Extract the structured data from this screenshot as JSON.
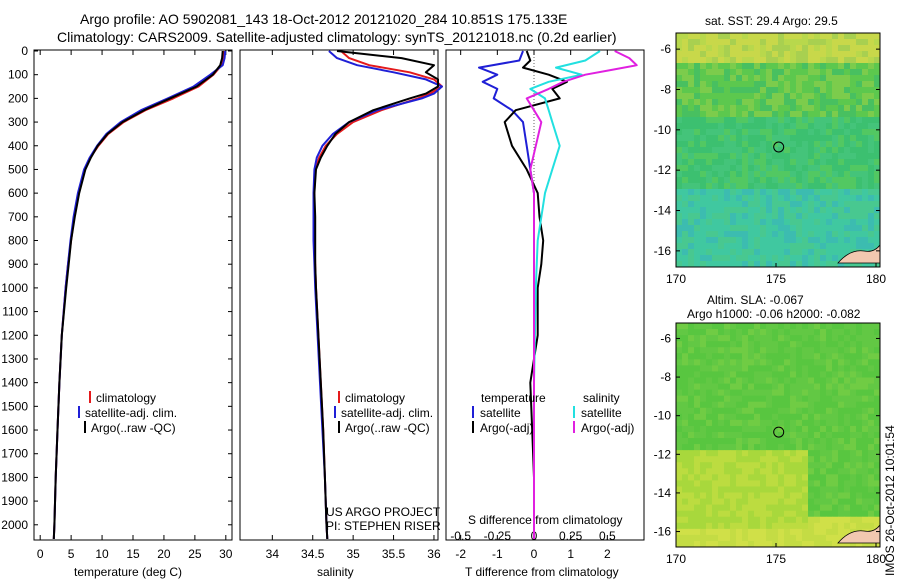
{
  "header": {
    "line1": "Argo profile: AO 5902081_143 18-Oct-2012 20121020_284 10.851S 175.133E",
    "line2": "Climatology: CARS2009. Satellite-adjusted climatology: synTS_20121018.nc (0.2d earlier)"
  },
  "colors": {
    "climatology": "#e41a1c",
    "satellite": "#1f1fd6",
    "argo": "#000000",
    "sal_satellite": "#22e0e0",
    "sal_argo": "#e020e0"
  },
  "depth_axis": {
    "ticks": [
      0,
      100,
      200,
      300,
      400,
      500,
      600,
      700,
      800,
      900,
      1000,
      1100,
      1200,
      1300,
      1400,
      1500,
      1600,
      1700,
      1800,
      1900,
      2000
    ],
    "range": [
      0,
      2060
    ]
  },
  "legend_profiles": {
    "climatology": "climatology",
    "satellite": "satellite-adj. clim.",
    "argo": "Argo(..raw -QC)"
  },
  "legend_diff": {
    "temperature": "temperature",
    "salinity": "salinity",
    "satellite": "satellite",
    "argo": "Argo(-adj)"
  },
  "project": {
    "line1": "US ARGO PROJECT",
    "line2": "PI: STEPHEN RISER"
  },
  "maps": {
    "sst_title": "sat. SST: 29.4 Argo: 29.5",
    "sla_title1": "Altim. SLA: -0.067",
    "sla_title2": "Argo h1000: -0.06 h2000: -0.082",
    "lat_ticks": [
      -6,
      -8,
      -10,
      -12,
      -14,
      -16
    ],
    "lon_ticks": [
      170,
      175,
      180
    ],
    "lat_range": [
      -16.8,
      -5.2
    ],
    "lon_range": [
      170,
      180.2
    ],
    "profile_position": {
      "lon": 175.133,
      "lat": -10.851
    }
  },
  "footer_stamp": "IMOS 26-Oct-2012 10:01:54",
  "chart_data": [
    {
      "type": "line",
      "xlabel": "temperature (deg C)",
      "ylabel": "",
      "xlim": [
        -1,
        31
      ],
      "ylim": [
        2060,
        0
      ],
      "x_ticks": [
        0,
        5,
        10,
        15,
        20,
        25,
        30
      ],
      "series": [
        {
          "name": "climatology",
          "depth": [
            0,
            30,
            60,
            100,
            150,
            200,
            250,
            300,
            350,
            400,
            450,
            500,
            600,
            700,
            800,
            900,
            1000,
            1200,
            1400,
            1600,
            1800,
            2000,
            2060
          ],
          "values": [
            29.7,
            29.6,
            29.3,
            28.0,
            25.6,
            21.5,
            17.0,
            13.5,
            11.0,
            9.4,
            8.1,
            7.2,
            6.2,
            5.5,
            5.0,
            4.5,
            4.1,
            3.5,
            3.1,
            2.8,
            2.5,
            2.3,
            2.2
          ]
        },
        {
          "name": "satellite-adj. clim.",
          "depth": [
            0,
            30,
            60,
            100,
            150,
            200,
            250,
            300,
            350,
            400,
            450,
            500,
            600,
            700,
            800,
            900,
            1000,
            1200,
            1400,
            1600,
            1800,
            2000,
            2060
          ],
          "values": [
            29.9,
            29.8,
            29.5,
            27.5,
            24.8,
            20.6,
            16.3,
            13.0,
            10.7,
            9.2,
            8.0,
            7.1,
            6.1,
            5.4,
            4.9,
            4.5,
            4.1,
            3.5,
            3.1,
            2.8,
            2.5,
            2.3,
            2.2
          ]
        },
        {
          "name": "Argo(..raw -QC)",
          "depth": [
            0,
            30,
            60,
            100,
            150,
            200,
            250,
            300,
            350,
            400,
            450,
            500,
            600,
            700,
            800,
            900,
            1000,
            1200,
            1400,
            1600,
            1800,
            2000,
            2060
          ],
          "values": [
            29.5,
            29.4,
            29.1,
            27.9,
            25.3,
            21.0,
            16.8,
            13.3,
            10.9,
            9.3,
            8.2,
            7.3,
            6.3,
            5.6,
            5.0,
            4.6,
            4.2,
            3.5,
            3.1,
            2.8,
            2.5,
            2.3,
            2.2
          ]
        }
      ]
    },
    {
      "type": "line",
      "xlabel": "salinity",
      "ylabel": "",
      "xlim": [
        33.6,
        36.05
      ],
      "ylim": [
        2060,
        0
      ],
      "x_ticks": [
        34,
        34.5,
        35,
        35.5,
        36
      ],
      "series": [
        {
          "name": "climatology",
          "depth": [
            0,
            30,
            60,
            90,
            120,
            150,
            180,
            200,
            250,
            300,
            350,
            400,
            450,
            500,
            600,
            700,
            800,
            900,
            1000,
            1200,
            1400,
            1600,
            1800,
            2000,
            2060
          ],
          "values": [
            34.85,
            34.95,
            35.2,
            35.7,
            36.0,
            36.1,
            35.95,
            35.8,
            35.35,
            35.0,
            34.8,
            34.66,
            34.58,
            34.53,
            34.52,
            34.52,
            34.52,
            34.53,
            34.54,
            34.57,
            34.6,
            34.63,
            34.65,
            34.67,
            34.68
          ]
        },
        {
          "name": "satellite-adj. clim.",
          "depth": [
            0,
            30,
            60,
            90,
            120,
            150,
            180,
            200,
            250,
            300,
            350,
            400,
            450,
            500,
            600,
            700,
            800,
            900,
            1000,
            1200,
            1400,
            1600,
            1800,
            2000,
            2060
          ],
          "values": [
            34.7,
            34.8,
            35.05,
            35.5,
            35.9,
            36.1,
            36.0,
            35.85,
            35.3,
            34.95,
            34.75,
            34.62,
            34.55,
            34.52,
            34.51,
            34.51,
            34.51,
            34.52,
            34.53,
            34.56,
            34.59,
            34.62,
            34.65,
            34.67,
            34.68
          ]
        },
        {
          "name": "Argo(..raw -QC)",
          "depth": [
            0,
            30,
            60,
            90,
            120,
            150,
            180,
            200,
            250,
            300,
            350,
            400,
            450,
            500,
            600,
            700,
            800,
            900,
            1000,
            1200,
            1400,
            1600,
            1800,
            2000,
            2060
          ],
          "values": [
            34.8,
            35.6,
            36.0,
            35.9,
            36.05,
            36.05,
            35.9,
            35.7,
            35.25,
            34.95,
            34.78,
            34.68,
            34.6,
            34.54,
            34.52,
            34.53,
            34.53,
            34.53,
            34.54,
            34.57,
            34.6,
            34.63,
            34.65,
            34.67,
            34.68
          ]
        }
      ]
    },
    {
      "type": "line",
      "xlabel": "T difference from climatology",
      "secondary_xlabel": "S difference from climatology",
      "ylabel": "",
      "xlim": [
        -2.4,
        3.0
      ],
      "ylim": [
        2060,
        0
      ],
      "x_ticks": [
        -2,
        -1,
        0,
        1,
        2
      ],
      "secondary_x_ticks": [
        -0.5,
        -0.25,
        0,
        0.25,
        0.5
      ],
      "series": [
        {
          "name": "temperature satellite",
          "depth": [
            0,
            40,
            70,
            100,
            130,
            160,
            200,
            250,
            300,
            400,
            500,
            600,
            700,
            800,
            1000,
            1200,
            1400,
            1600,
            1800,
            2000,
            2060
          ],
          "values": [
            -0.3,
            -0.4,
            -1.5,
            -1.0,
            -1.4,
            -1.0,
            -1.1,
            -0.6,
            -0.3,
            -0.2,
            -0.1,
            0.0,
            0.0,
            0.0,
            0.0,
            0.0,
            0.0,
            0.0,
            0.0,
            0.0,
            0.0
          ]
        },
        {
          "name": "temperature Argo(-adj)",
          "depth": [
            0,
            40,
            70,
            100,
            130,
            160,
            200,
            250,
            300,
            400,
            500,
            600,
            700,
            800,
            900,
            1000,
            1200,
            1400,
            1600,
            1800,
            2000,
            2060
          ],
          "values": [
            -0.2,
            -0.1,
            -0.3,
            0.4,
            0.9,
            0.5,
            0.7,
            -0.5,
            -0.8,
            -0.6,
            -0.2,
            0.1,
            0.15,
            0.25,
            0.2,
            0.1,
            0.1,
            -0.1,
            -0.05,
            0.0,
            0.0,
            0.0
          ]
        },
        {
          "name": "salinity satellite",
          "depth": [
            0,
            40,
            70,
            100,
            130,
            160,
            200,
            250,
            300,
            350,
            400,
            500,
            600,
            800,
            1000,
            1400,
            1800,
            2060
          ],
          "values": [
            1.8,
            1.4,
            0.6,
            1.3,
            0.4,
            -0.1,
            0.3,
            0.4,
            0.5,
            0.6,
            0.7,
            0.5,
            0.3,
            0.1,
            0.05,
            0.0,
            0.0,
            0.0
          ]
        },
        {
          "name": "salinity Argo(-adj)",
          "depth": [
            0,
            30,
            60,
            80,
            100,
            130,
            160,
            200,
            250,
            300,
            400,
            500,
            600,
            800,
            1000,
            1400,
            1800,
            2060
          ],
          "values": [
            2.2,
            2.6,
            2.8,
            2.1,
            1.4,
            0.8,
            0.4,
            -0.2,
            0.0,
            0.2,
            0.05,
            -0.1,
            0.0,
            0.0,
            0.0,
            0.0,
            0.0,
            0.0
          ]
        }
      ]
    },
    {
      "type": "heatmap",
      "title": "sat. SST: 29.4 Argo: 29.5",
      "xlabel": "",
      "ylabel": "",
      "xlim": [
        170,
        180.2
      ],
      "ylim": [
        -16.8,
        -5.2
      ]
    },
    {
      "type": "heatmap",
      "title": "Altim. SLA: -0.067",
      "xlabel": "",
      "ylabel": "",
      "xlim": [
        170,
        180.2
      ],
      "ylim": [
        -16.8,
        -5.2
      ]
    }
  ]
}
